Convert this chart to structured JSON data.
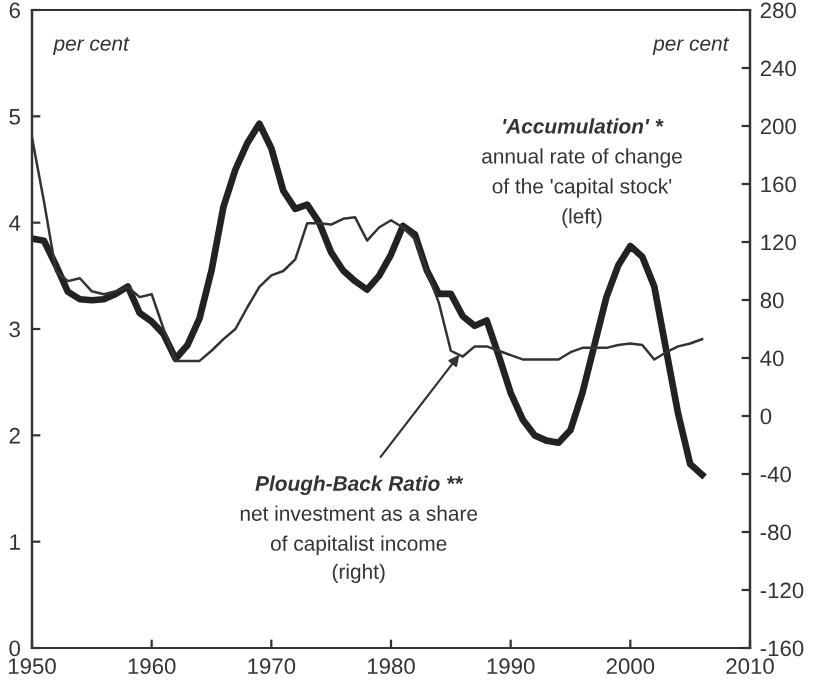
{
  "chart_data": {
    "type": "line",
    "x": [
      1950,
      1951,
      1952,
      1953,
      1954,
      1955,
      1956,
      1957,
      1958,
      1959,
      1960,
      1961,
      1962,
      1963,
      1964,
      1965,
      1966,
      1967,
      1968,
      1969,
      1970,
      1971,
      1972,
      1973,
      1974,
      1975,
      1976,
      1977,
      1978,
      1979,
      1980,
      1981,
      1982,
      1983,
      1984,
      1985,
      1986,
      1987,
      1988,
      1989,
      1990,
      1991,
      1992,
      1993,
      1994,
      1995,
      1996,
      1997,
      1998,
      1999,
      2000,
      2001,
      2002,
      2003,
      2004,
      2005,
      2006
    ],
    "series": [
      {
        "color": "#222222",
        "axis": "y",
        "values": [
          3.85,
          3.83,
          3.6,
          3.35,
          3.28,
          3.27,
          3.28,
          3.33,
          3.4,
          3.15,
          3.07,
          2.95,
          2.72,
          2.85,
          3.1,
          3.55,
          4.15,
          4.5,
          4.75,
          4.93,
          4.7,
          4.3,
          4.13,
          4.17,
          4.0,
          3.72,
          3.55,
          3.45,
          3.37,
          3.5,
          3.7,
          3.97,
          3.89,
          3.55,
          3.33,
          3.33,
          3.12,
          3.03,
          3.08,
          2.75,
          2.4,
          2.15,
          2.0,
          1.95,
          1.93,
          2.05,
          2.4,
          2.85,
          3.3,
          3.6,
          3.78,
          3.68,
          3.4,
          2.8,
          2.2,
          1.73,
          1.63
        ]
      },
      {
        "color": "#333333",
        "axis": "y2",
        "values": [
          192,
          148,
          100,
          93,
          95,
          86,
          84,
          86,
          89,
          82,
          84,
          60,
          38,
          38,
          38,
          45,
          53,
          60,
          75,
          89,
          97,
          100,
          108,
          133,
          133,
          132,
          136,
          137,
          121,
          130,
          135,
          130,
          122,
          100,
          78,
          45,
          41,
          48,
          48,
          45,
          42,
          39,
          39,
          39,
          39,
          44,
          47,
          47,
          47,
          49,
          50,
          49,
          39,
          44,
          48,
          50,
          53
        ]
      }
    ],
    "xlim": [
      1950,
      2010
    ],
    "xticks": [
      1950,
      1960,
      1970,
      1980,
      1990,
      2000,
      2010
    ],
    "ylim": [
      0,
      6
    ],
    "yticks": [
      0,
      1,
      2,
      3,
      4,
      5,
      6
    ],
    "y2lim": [
      -160,
      280
    ],
    "y2ticks": [
      -160,
      -120,
      -80,
      -40,
      0,
      40,
      80,
      120,
      160,
      200,
      240,
      280
    ],
    "grid": false,
    "legend": false,
    "annotations": [
      "per cent",
      "per cent",
      "'Accumulation' *",
      "annual rate of change",
      "of the 'capital stock'",
      "(left)",
      {
        "text": "Plough-Back Ratio **",
        "x": 1986,
        "y": 2.8
      },
      "net investment as a share",
      "of capitalist income",
      "(right)"
    ]
  }
}
